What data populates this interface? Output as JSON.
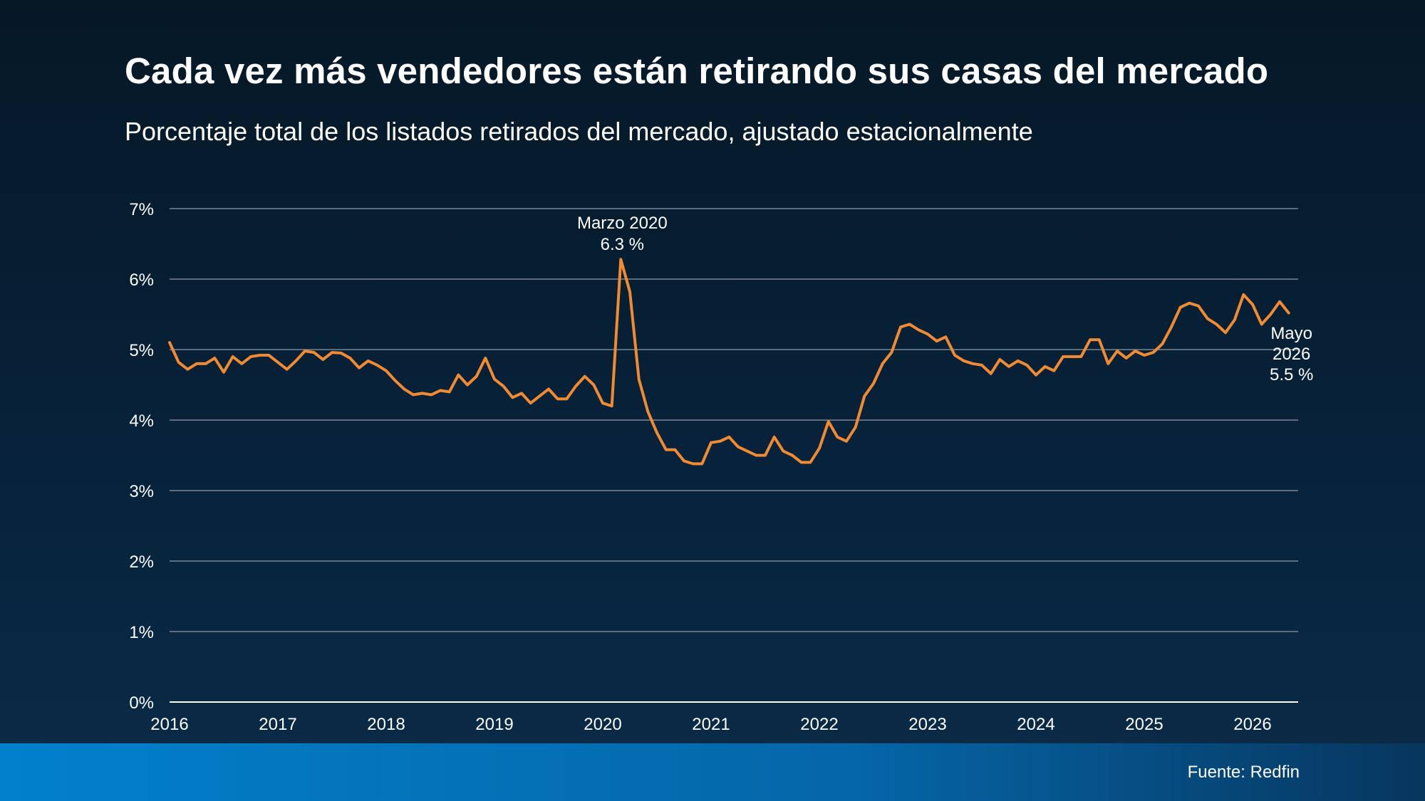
{
  "header": {
    "title": "Cada vez más vendedores están retirando sus casas del mercado",
    "subtitle": "Porcentaje total de los listados retirados del mercado, ajustado estacionalmente"
  },
  "footer": {
    "source": "Fuente: Redfin"
  },
  "colors": {
    "line": "#f08a33",
    "grid": "#7a8694",
    "axis": "#ffffff",
    "footer_start": "#0280cc",
    "footer_end": "#07365e"
  },
  "chart_data": {
    "type": "line",
    "title": "",
    "xlabel": "",
    "ylabel": "",
    "ylim": [
      0,
      7
    ],
    "yticks": [
      "0%",
      "1%",
      "2%",
      "3%",
      "4%",
      "5%",
      "6%",
      "7%"
    ],
    "xticks": [
      "2016",
      "2017",
      "2018",
      "2019",
      "2020",
      "2021",
      "2022",
      "2023",
      "2024",
      "2025",
      "2026"
    ],
    "xlim_years": [
      2016,
      2026.42
    ],
    "grid": true,
    "start": "2016-01",
    "frequency": "monthly",
    "series": [
      {
        "values": [
          5.1,
          4.82,
          4.72,
          4.8,
          4.8,
          4.88,
          4.68,
          4.9,
          4.8,
          4.9,
          4.92,
          4.92,
          4.82,
          4.72,
          4.84,
          4.98,
          4.96,
          4.86,
          4.96,
          4.95,
          4.88,
          4.74,
          4.84,
          4.78,
          4.7,
          4.56,
          4.44,
          4.36,
          4.38,
          4.36,
          4.42,
          4.4,
          4.64,
          4.5,
          4.62,
          4.88,
          4.58,
          4.48,
          4.32,
          4.38,
          4.24,
          4.34,
          4.44,
          4.3,
          4.3,
          4.48,
          4.62,
          4.5,
          4.24,
          4.2,
          6.28,
          5.82,
          4.58,
          4.12,
          3.82,
          3.58,
          3.58,
          3.42,
          3.38,
          3.38,
          3.68,
          3.7,
          3.76,
          3.62,
          3.56,
          3.5,
          3.5,
          3.76,
          3.56,
          3.5,
          3.4,
          3.4,
          3.6,
          3.98,
          3.76,
          3.7,
          3.9,
          4.34,
          4.52,
          4.8,
          4.96,
          5.32,
          5.36,
          5.28,
          5.22,
          5.12,
          5.18,
          4.92,
          4.84,
          4.8,
          4.78,
          4.66,
          4.86,
          4.76,
          4.84,
          4.78,
          4.64,
          4.76,
          4.7,
          4.9,
          4.9,
          4.9,
          5.14,
          5.14,
          4.8,
          4.98,
          4.88,
          4.98,
          4.92,
          4.96,
          5.08,
          5.32,
          5.6,
          5.66,
          5.62,
          5.44,
          5.36,
          5.24,
          5.42,
          5.78,
          5.64,
          5.36,
          5.5,
          5.68,
          5.52
        ]
      }
    ],
    "annotations": [
      {
        "lines": [
          "Marzo 2020",
          "6.3 %"
        ],
        "x": "2020-03",
        "y": 6.3
      },
      {
        "lines": [
          "Mayo",
          "2026",
          "5.5 %"
        ],
        "x": "2026-05",
        "y": 5.5
      }
    ]
  }
}
